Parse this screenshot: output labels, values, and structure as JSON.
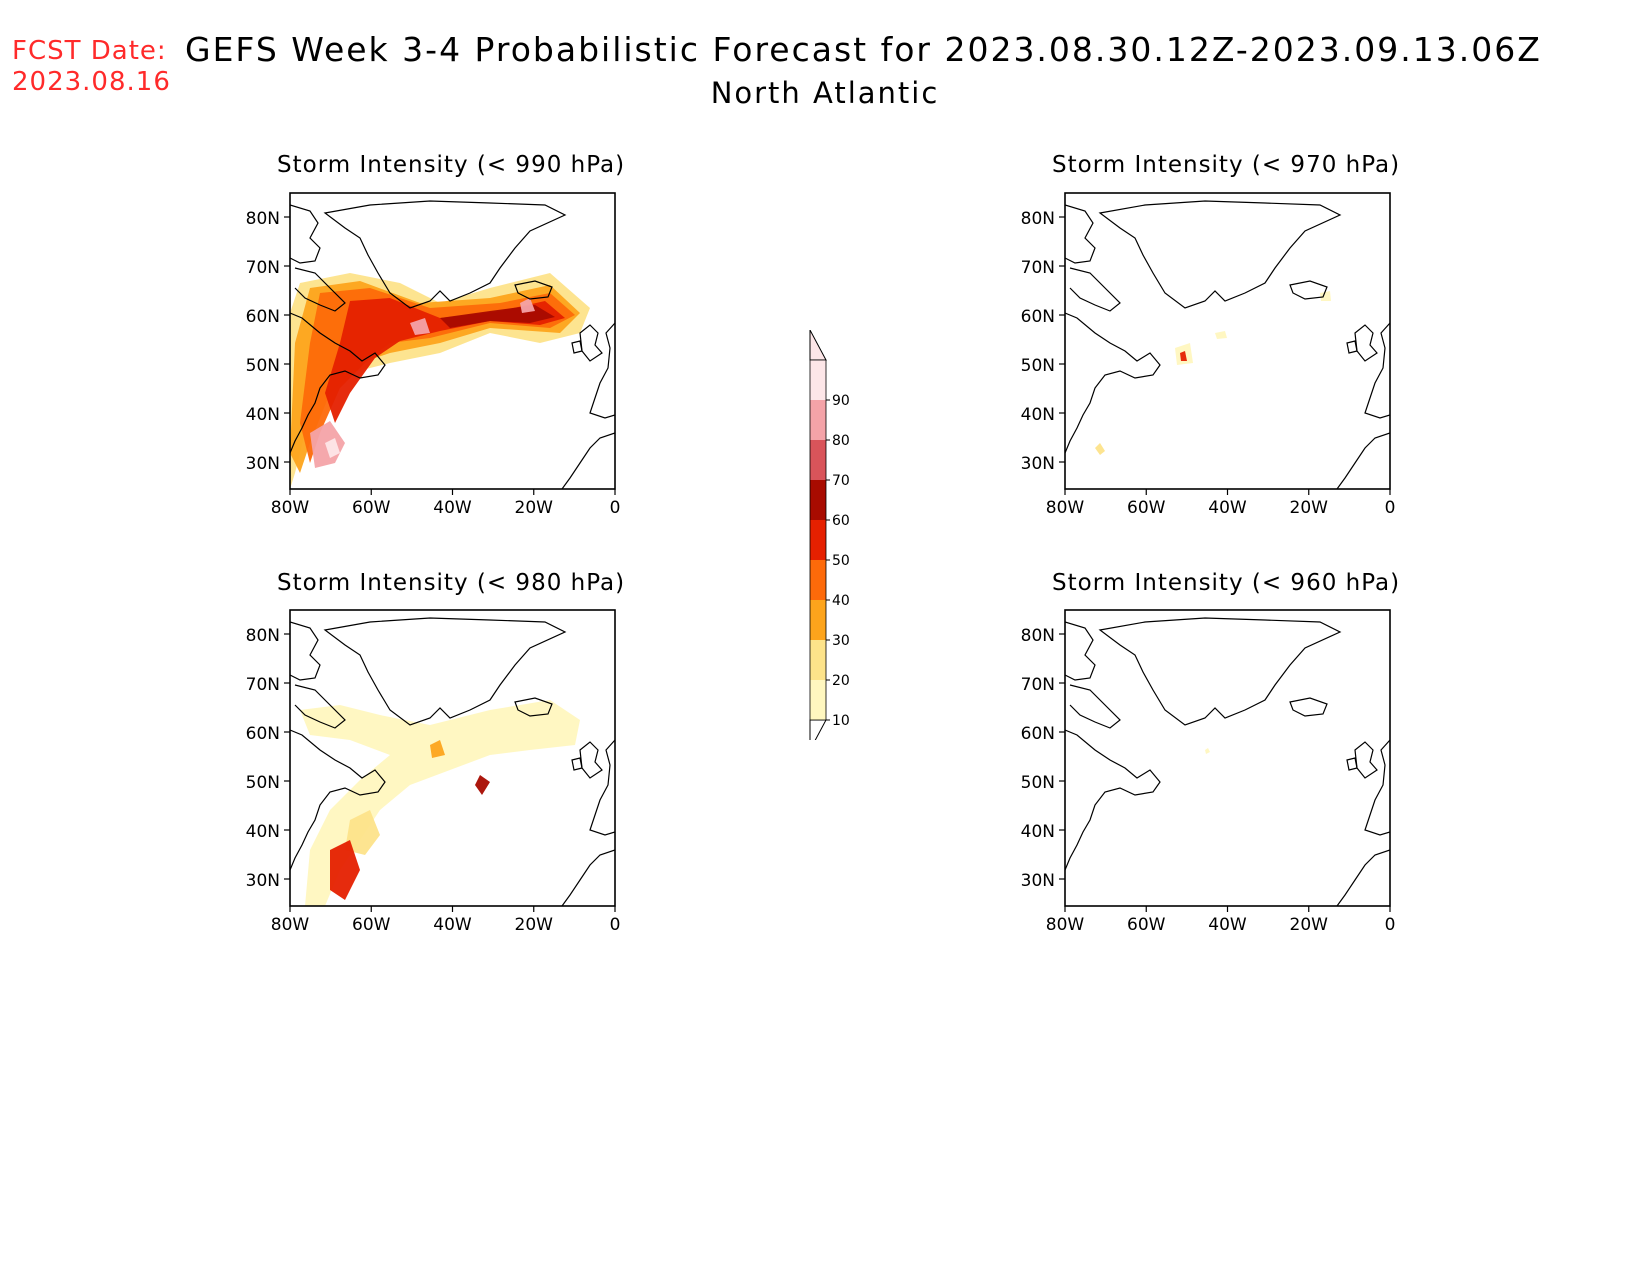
{
  "header": {
    "fcst_label": "FCST Date:",
    "fcst_date": "2023.08.16",
    "title": "GEFS Week 3-4 Probabilistic Forecast for 2023.08.30.12Z-2023.09.13.06Z",
    "subtitle": "North Atlantic"
  },
  "panels": [
    {
      "id": "p990",
      "title": "Storm Intensity (< 990 hPa)",
      "intensity": "high"
    },
    {
      "id": "p970",
      "title": "Storm Intensity (< 970 hPa)",
      "intensity": "low"
    },
    {
      "id": "p980",
      "title": "Storm Intensity (< 980 hPa)",
      "intensity": "medium"
    },
    {
      "id": "p960",
      "title": "Storm Intensity (< 960 hPa)",
      "intensity": "none"
    }
  ],
  "axes": {
    "lat_labels": [
      "80N",
      "70N",
      "60N",
      "50N",
      "40N",
      "30N"
    ],
    "lon_labels": [
      "80W",
      "60W",
      "40W",
      "20W",
      "0"
    ]
  },
  "colorbar": {
    "levels": [
      "10",
      "20",
      "30",
      "40",
      "50",
      "60",
      "70",
      "80",
      "90"
    ],
    "colors": [
      "#fff7bf",
      "#fde38a",
      "#fda41c",
      "#fd6a0a",
      "#e52000",
      "#a80b00",
      "#d9545a",
      "#f4a3a8",
      "#fde6e8"
    ]
  }
}
